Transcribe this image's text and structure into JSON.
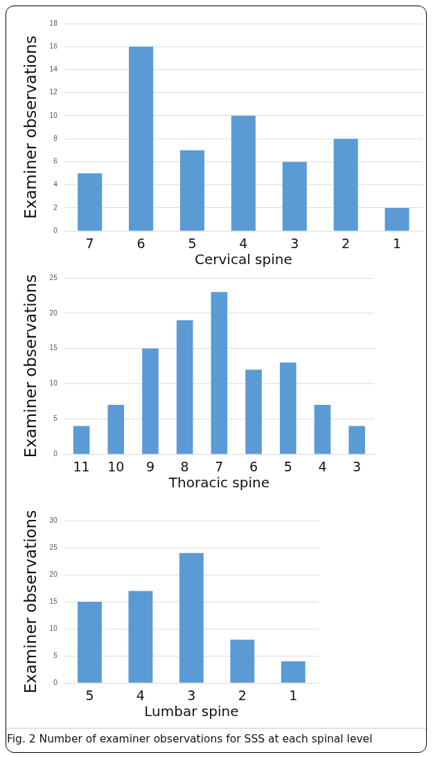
{
  "chart_data": [
    {
      "type": "bar",
      "xlabel": "Cervical spine",
      "ylabel": "Examiner observations",
      "categories": [
        "7",
        "6",
        "5",
        "4",
        "3",
        "2",
        "1"
      ],
      "values": [
        5,
        16,
        7,
        10,
        6,
        8,
        2
      ],
      "color": "#5b9bd5",
      "ylim": [
        0,
        18
      ],
      "yticks": [
        0,
        2,
        4,
        6,
        8,
        10,
        12,
        14,
        16,
        18
      ],
      "grid": "y"
    },
    {
      "type": "bar",
      "xlabel": "Thoracic spine",
      "ylabel": "Examiner observations",
      "categories": [
        "11",
        "10",
        "9",
        "8",
        "7",
        "6",
        "5",
        "4",
        "3"
      ],
      "values": [
        4,
        7,
        15,
        19,
        23,
        12,
        13,
        7,
        4
      ],
      "color": "#5b9bd5",
      "ylim": [
        0,
        25
      ],
      "yticks": [
        0,
        5,
        10,
        15,
        20,
        25
      ],
      "grid": "y"
    },
    {
      "type": "bar",
      "xlabel": "Lumbar spine",
      "ylabel": "Examiner observations",
      "categories": [
        "5",
        "4",
        "3",
        "2",
        "1"
      ],
      "values": [
        15,
        17,
        24,
        8,
        4
      ],
      "color": "#5b9bd5",
      "ylim": [
        0,
        30
      ],
      "yticks": [
        0,
        5,
        10,
        15,
        20,
        25,
        30
      ],
      "grid": "y",
      "annotations": [
        "Fig. 2 Number of examiner observations for SSS at each spinal level"
      ]
    }
  ]
}
